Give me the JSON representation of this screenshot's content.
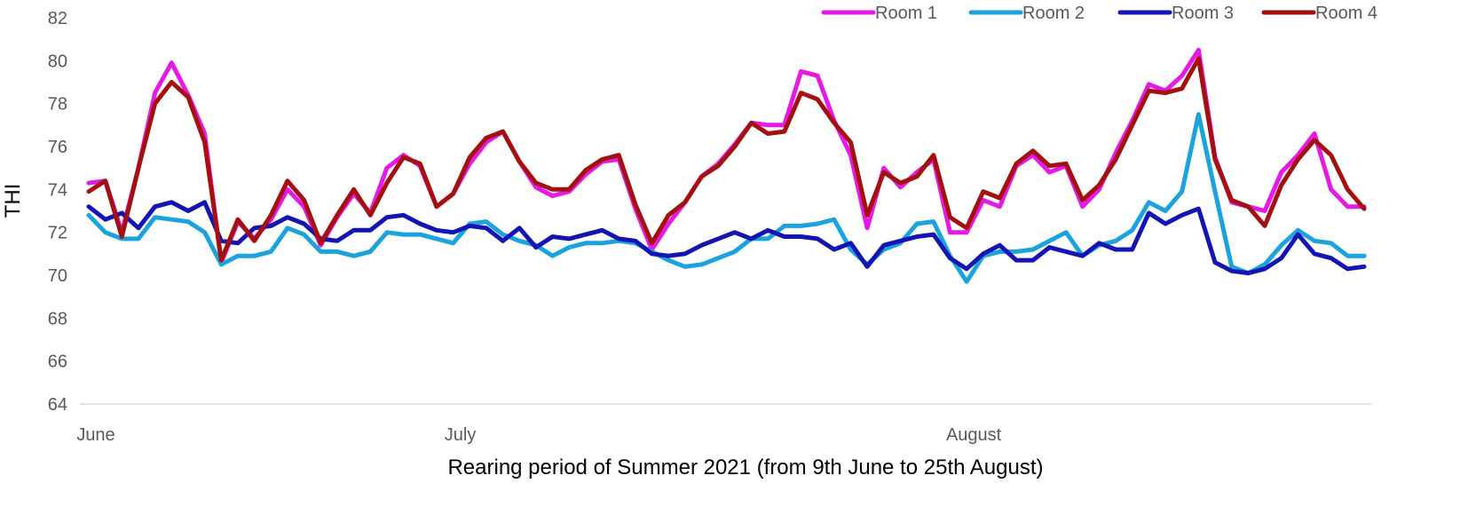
{
  "chart_data": {
    "type": "line",
    "title": "",
    "xlabel": "Rearing period of Summer 2021 (from 9th June to 25th August)",
    "ylabel": "THI",
    "ylim": [
      64,
      82
    ],
    "yticks": [
      64,
      66,
      68,
      70,
      72,
      74,
      76,
      78,
      80,
      82
    ],
    "x_tick_labels": [
      {
        "label": "June",
        "index": 0
      },
      {
        "label": "July",
        "index": 22
      },
      {
        "label": "August",
        "index": 53
      }
    ],
    "grid": false,
    "legend_position": "top-right",
    "n_days": 78,
    "series": [
      {
        "name": "Room 1",
        "color": "#e619e6",
        "values": [
          74.3,
          74.4,
          72.0,
          75.0,
          78.5,
          79.9,
          78.4,
          76.6,
          70.6,
          72.5,
          71.7,
          72.6,
          74.0,
          73.2,
          71.4,
          72.7,
          73.8,
          72.9,
          75.0,
          75.6,
          75.1,
          73.2,
          73.8,
          75.2,
          76.2,
          76.7,
          75.3,
          74.1,
          73.7,
          73.9,
          74.7,
          75.3,
          75.4,
          73.1,
          71.2,
          72.4,
          73.4,
          74.6,
          75.2,
          76.1,
          77.1,
          77.0,
          77.0,
          79.5,
          79.3,
          77.2,
          75.6,
          72.2,
          75.0,
          74.1,
          74.8,
          75.4,
          72.0,
          72.0,
          73.5,
          73.2,
          75.1,
          75.6,
          74.8,
          75.1,
          73.2,
          74.0,
          75.7,
          77.2,
          78.9,
          78.6,
          79.3,
          80.5,
          75.5,
          73.4,
          73.2,
          73.0,
          74.8,
          75.6,
          76.6,
          74.0,
          73.2,
          73.2
        ]
      },
      {
        "name": "Room 2",
        "color": "#1aa3dc",
        "values": [
          72.8,
          72.0,
          71.7,
          71.7,
          72.7,
          72.6,
          72.5,
          72.0,
          70.5,
          70.9,
          70.9,
          71.1,
          72.2,
          71.9,
          71.1,
          71.1,
          70.9,
          71.1,
          72.0,
          71.9,
          71.9,
          71.7,
          71.5,
          72.4,
          72.5,
          71.9,
          71.6,
          71.4,
          70.9,
          71.3,
          71.5,
          71.5,
          71.6,
          71.5,
          71.1,
          70.7,
          70.4,
          70.5,
          70.8,
          71.1,
          71.7,
          71.7,
          72.3,
          72.3,
          72.4,
          72.6,
          71.2,
          70.5,
          71.2,
          71.5,
          72.4,
          72.5,
          70.9,
          69.7,
          70.9,
          71.1,
          71.1,
          71.2,
          71.6,
          72.0,
          70.9,
          71.4,
          71.6,
          72.1,
          73.4,
          73.0,
          73.9,
          77.5,
          73.9,
          70.4,
          70.1,
          70.5,
          71.4,
          72.1,
          71.6,
          71.5,
          70.9,
          70.9
        ]
      },
      {
        "name": "Room 3",
        "color": "#1414b4",
        "values": [
          73.2,
          72.6,
          72.9,
          72.2,
          73.2,
          73.4,
          73.0,
          73.4,
          71.6,
          71.5,
          72.2,
          72.3,
          72.7,
          72.4,
          71.7,
          71.6,
          72.1,
          72.1,
          72.7,
          72.8,
          72.4,
          72.1,
          72.0,
          72.3,
          72.2,
          71.6,
          72.2,
          71.3,
          71.8,
          71.7,
          71.9,
          72.1,
          71.7,
          71.6,
          71.0,
          70.9,
          71.0,
          71.4,
          71.7,
          72.0,
          71.7,
          72.1,
          71.8,
          71.8,
          71.7,
          71.2,
          71.5,
          70.4,
          71.4,
          71.6,
          71.8,
          71.9,
          70.8,
          70.3,
          71.0,
          71.4,
          70.7,
          70.7,
          71.3,
          71.1,
          70.9,
          71.5,
          71.2,
          71.2,
          72.9,
          72.4,
          72.8,
          73.1,
          70.6,
          70.2,
          70.1,
          70.3,
          70.8,
          71.9,
          71.0,
          70.8,
          70.3,
          70.4
        ]
      },
      {
        "name": "Room 4",
        "color": "#a50f0f",
        "values": [
          73.9,
          74.4,
          71.8,
          75.0,
          78.0,
          79.0,
          78.3,
          76.2,
          70.7,
          72.6,
          71.6,
          72.8,
          74.4,
          73.5,
          71.5,
          72.8,
          74.0,
          72.8,
          74.3,
          75.5,
          75.2,
          73.2,
          73.8,
          75.5,
          76.4,
          76.7,
          75.3,
          74.3,
          74.0,
          74.0,
          74.9,
          75.4,
          75.6,
          73.3,
          71.5,
          72.8,
          73.4,
          74.6,
          75.1,
          76.0,
          77.1,
          76.6,
          76.7,
          78.5,
          78.2,
          77.1,
          76.2,
          72.8,
          74.8,
          74.3,
          74.6,
          75.6,
          72.7,
          72.2,
          73.9,
          73.6,
          75.2,
          75.8,
          75.1,
          75.2,
          73.5,
          74.2,
          75.4,
          77.0,
          78.6,
          78.5,
          78.7,
          80.1,
          75.4,
          73.5,
          73.2,
          72.3,
          74.2,
          75.4,
          76.3,
          75.6,
          74.0,
          73.1
        ]
      }
    ]
  }
}
